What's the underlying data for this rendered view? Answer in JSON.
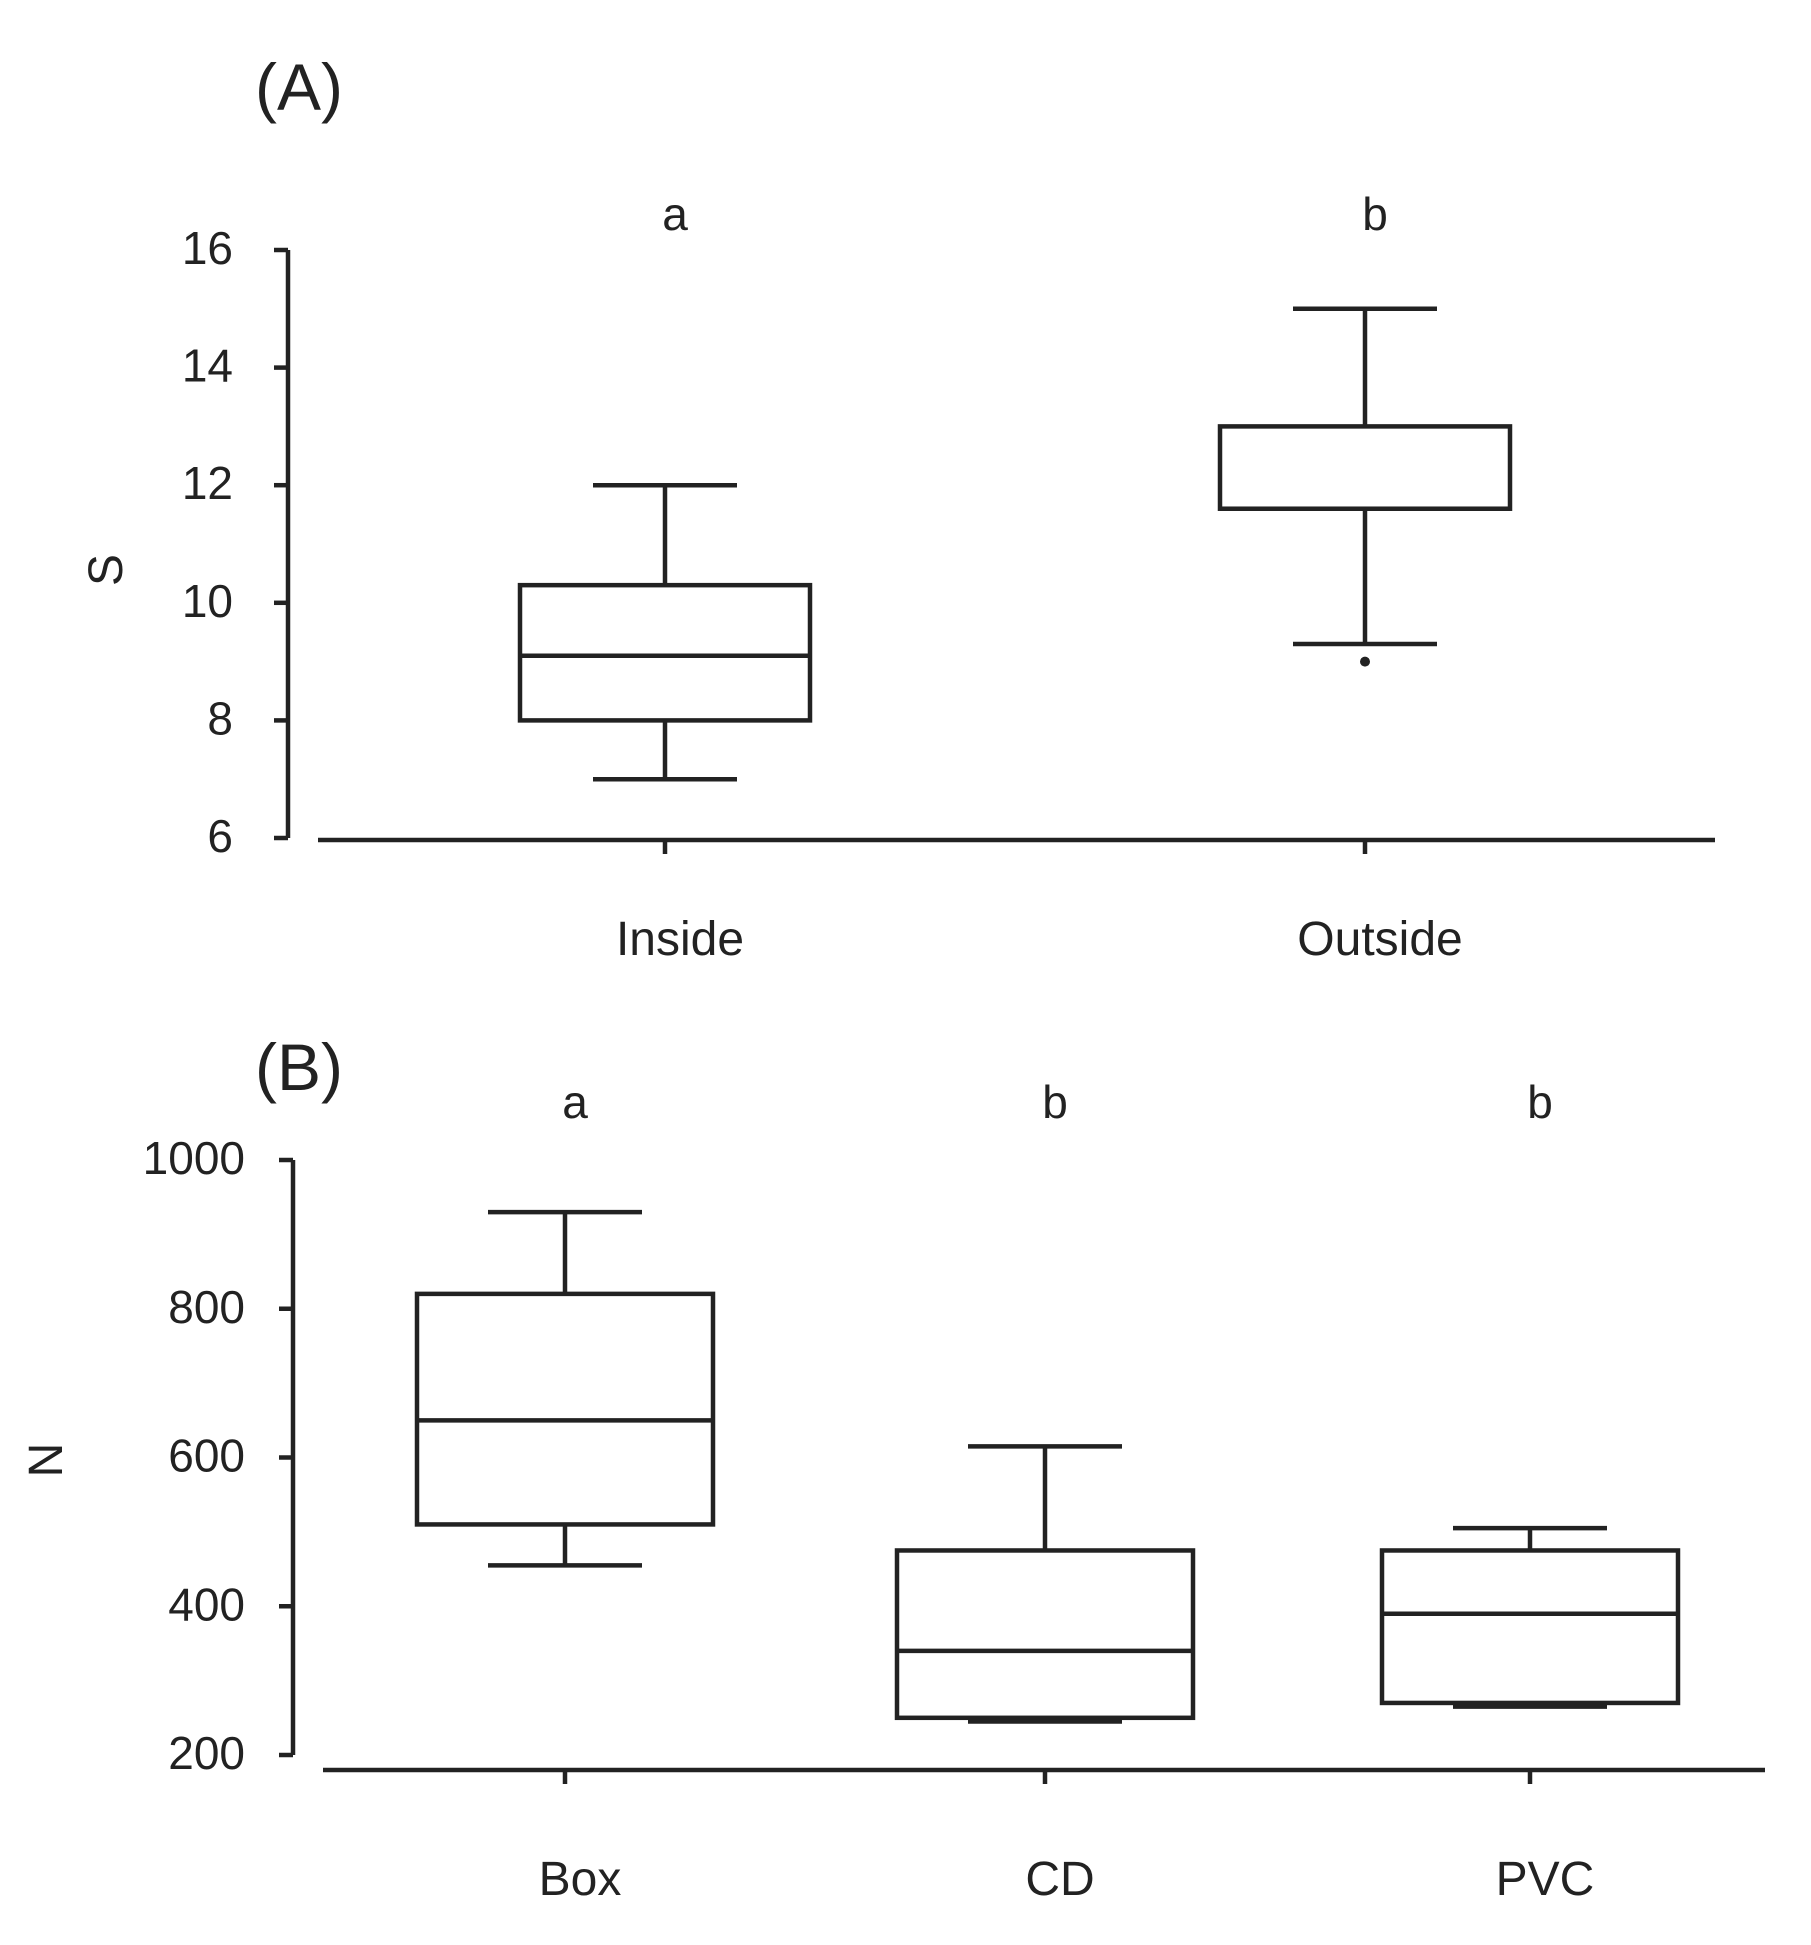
{
  "chart_data": [
    {
      "type": "box",
      "panel_label": "(A)",
      "ylabel": "S",
      "xlabel": "",
      "ylim": [
        6,
        16
      ],
      "yticks": [
        "6",
        "8",
        "10",
        "12",
        "14",
        "16"
      ],
      "categories": [
        "Inside",
        "Outside"
      ],
      "significance": [
        "a",
        "b"
      ],
      "boxes": [
        {
          "category": "Inside",
          "whisker_low": 7,
          "q1": 8,
          "median": 9.1,
          "q3": 10.3,
          "whisker_high": 12
        },
        {
          "category": "Outside",
          "whisker_low": 9.3,
          "q1": 11.6,
          "median": 11.6,
          "q3": 13,
          "whisker_high": 15
        },
        {
          "outliers_category": "Outside",
          "outliers": [
            9
          ]
        }
      ]
    },
    {
      "type": "box",
      "panel_label": "(B)",
      "ylabel": "N",
      "xlabel": "",
      "ylim": [
        200,
        1000
      ],
      "yticks": [
        "200",
        "400",
        "600",
        "800",
        "1000"
      ],
      "categories": [
        "Box",
        "CD",
        "PVC"
      ],
      "significance": [
        "a",
        "b",
        "b"
      ],
      "boxes": [
        {
          "category": "Box",
          "whisker_low": 455,
          "q1": 510,
          "median": 650,
          "q3": 820,
          "whisker_high": 930
        },
        {
          "category": "CD",
          "whisker_low": 245,
          "q1": 250,
          "median": 340,
          "q3": 475,
          "whisker_high": 615
        },
        {
          "category": "PVC",
          "whisker_low": 265,
          "q1": 270,
          "median": 390,
          "q3": 475,
          "whisker_high": 505
        }
      ]
    }
  ]
}
